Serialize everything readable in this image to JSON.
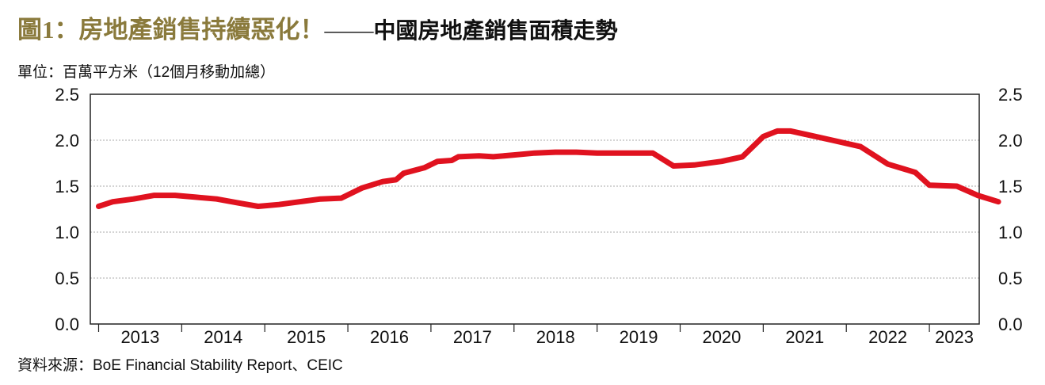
{
  "title": {
    "main": "圖1：房地產銷售持續惡化！",
    "dash": "——",
    "sub": "中國房地產銷售面積走勢"
  },
  "unit_label": "單位：百萬平方米（12個月移動加總）",
  "source": "資料來源：BoE Financial Stability Report、CEIC",
  "colors": {
    "line": "#e0121f",
    "title_accent": "#8a7a3c",
    "grid": "#aaaaaa"
  },
  "chart_data": {
    "type": "line",
    "title": "中國房地產銷售面積走勢",
    "ylabel": "單位：百萬平方米（12個月移動加總）",
    "ylim": [
      0,
      2.5
    ],
    "yticks": [
      "0.0",
      "0.5",
      "1.0",
      "1.5",
      "2.0",
      "2.5"
    ],
    "yaxis_both_sides": true,
    "xlim": [
      2012.9,
      2023.6
    ],
    "year_labels": [
      "2013",
      "2014",
      "2015",
      "2016",
      "2017",
      "2018",
      "2019",
      "2020",
      "2021",
      "2022",
      "2023"
    ],
    "grid": "horizontal dotted",
    "legend": "none",
    "series": [
      {
        "color": "#e0121f",
        "points": [
          [
            2013.0,
            1.28
          ],
          [
            2013.17,
            1.33
          ],
          [
            2013.42,
            1.36
          ],
          [
            2013.67,
            1.4
          ],
          [
            2013.92,
            1.4
          ],
          [
            2014.17,
            1.38
          ],
          [
            2014.42,
            1.36
          ],
          [
            2014.67,
            1.32
          ],
          [
            2014.92,
            1.28
          ],
          [
            2015.17,
            1.3
          ],
          [
            2015.42,
            1.33
          ],
          [
            2015.67,
            1.36
          ],
          [
            2015.92,
            1.37
          ],
          [
            2016.17,
            1.48
          ],
          [
            2016.42,
            1.55
          ],
          [
            2016.58,
            1.57
          ],
          [
            2016.67,
            1.64
          ],
          [
            2016.92,
            1.7
          ],
          [
            2017.08,
            1.77
          ],
          [
            2017.25,
            1.78
          ],
          [
            2017.33,
            1.82
          ],
          [
            2017.58,
            1.83
          ],
          [
            2017.75,
            1.82
          ],
          [
            2018.0,
            1.84
          ],
          [
            2018.25,
            1.86
          ],
          [
            2018.5,
            1.87
          ],
          [
            2018.75,
            1.87
          ],
          [
            2019.0,
            1.86
          ],
          [
            2019.33,
            1.86
          ],
          [
            2019.67,
            1.86
          ],
          [
            2019.92,
            1.72
          ],
          [
            2020.17,
            1.73
          ],
          [
            2020.5,
            1.77
          ],
          [
            2020.75,
            1.82
          ],
          [
            2021.0,
            2.04
          ],
          [
            2021.17,
            2.1
          ],
          [
            2021.33,
            2.1
          ],
          [
            2021.58,
            2.05
          ],
          [
            2021.83,
            2.0
          ],
          [
            2022.17,
            1.93
          ],
          [
            2022.5,
            1.74
          ],
          [
            2022.83,
            1.65
          ],
          [
            2023.0,
            1.51
          ],
          [
            2023.33,
            1.5
          ],
          [
            2023.58,
            1.4
          ],
          [
            2023.83,
            1.33
          ]
        ]
      }
    ]
  }
}
